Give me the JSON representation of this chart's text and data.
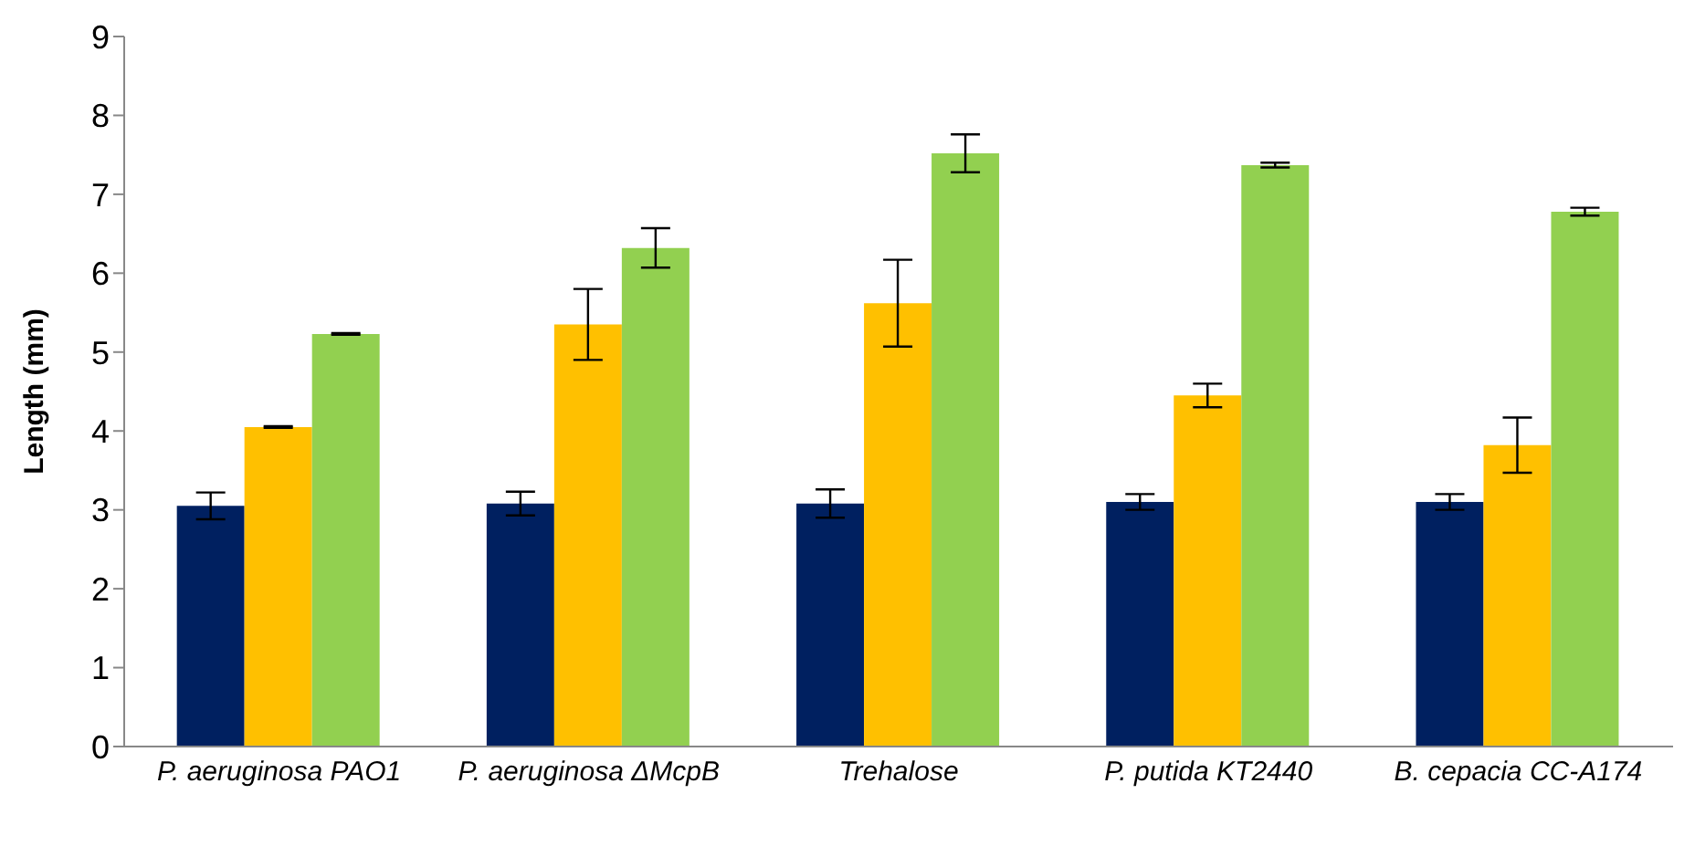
{
  "chart_data": {
    "type": "bar",
    "ylabel": "Length (mm)",
    "categories": [
      "P. aeruginosa PAO1",
      "P. aeruginosa ΔMcpB",
      "Trehalose",
      "P. putida KT2440",
      "B. cepacia CC-A174"
    ],
    "series": [
      {
        "color": "#002060",
        "values": [
          3.05,
          3.08,
          3.08,
          3.1,
          3.1
        ],
        "errors": [
          0.17,
          0.15,
          0.18,
          0.1,
          0.1
        ]
      },
      {
        "color": "#ffc000",
        "values": [
          4.05,
          5.35,
          5.62,
          4.45,
          3.82
        ],
        "errors": [
          0.01,
          0.45,
          0.55,
          0.15,
          0.35
        ]
      },
      {
        "color": "#92d050",
        "values": [
          5.23,
          6.32,
          7.52,
          7.37,
          6.78
        ],
        "errors": [
          0.01,
          0.25,
          0.24,
          0.03,
          0.05
        ]
      }
    ],
    "ylim": [
      0,
      9
    ],
    "yticks": [
      0,
      1,
      2,
      3,
      4,
      5,
      6,
      7,
      8,
      9
    ],
    "grid": false,
    "legend": false
  }
}
